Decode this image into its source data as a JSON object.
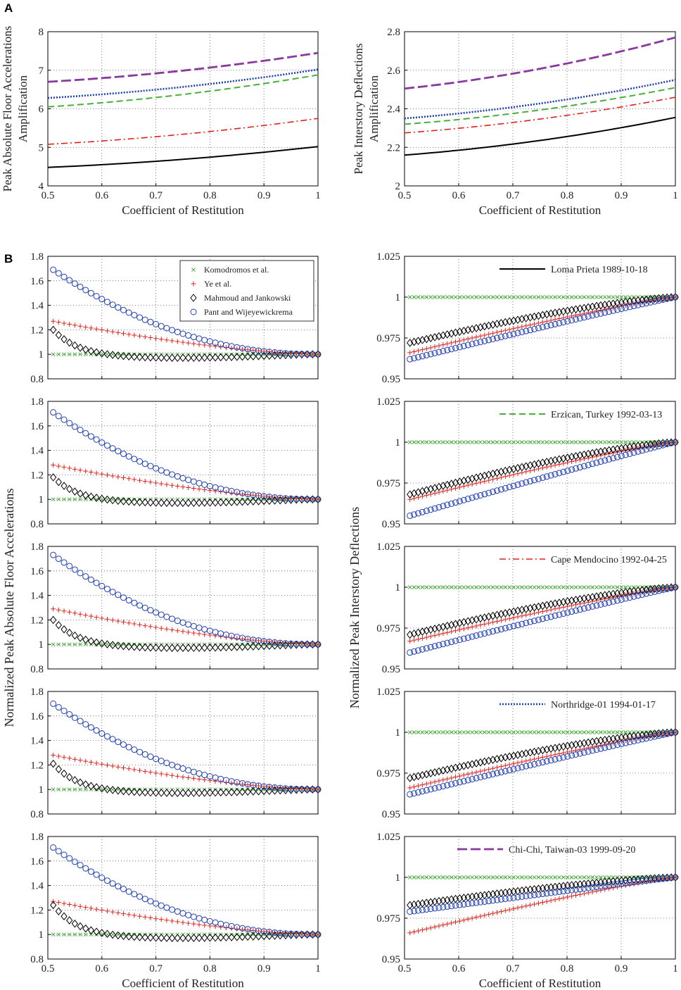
{
  "panel_labels": [
    "A",
    "B"
  ],
  "colors": {
    "loma": "#000000",
    "erzican": "#46b03a",
    "cape": "#e0211b",
    "northridge": "#1f3fb4",
    "chichi": "#8a3a9e",
    "komodromos": "#46b03a",
    "ye": "#e0211b",
    "mahmoud": "#000000",
    "pant": "#1f3fb4"
  },
  "chart_data": [
    {
      "type": "line",
      "id": "A-left",
      "xlabel": "Coefficient of Restitution",
      "ylabel_lines": [
        "Peak Absolute Floor Accelerations",
        "Amplification"
      ],
      "xlim": [
        0.5,
        1
      ],
      "ylim": [
        4,
        8
      ],
      "xticks": [
        "0.5",
        "0.6",
        "0.7",
        "0.8",
        "0.9",
        "1"
      ],
      "yticks": [
        "4",
        "5",
        "6",
        "7",
        "8"
      ],
      "series": [
        {
          "name": "Loma Prieta 1989-10-18",
          "style": "solid",
          "start": 4.48,
          "end": 5.02
        },
        {
          "name": "Erzican, Turkey 1992-03-13",
          "style": "dashed",
          "start": 6.05,
          "end": 6.88
        },
        {
          "name": "Cape Mendocino 1992-04-25",
          "style": "dashdot",
          "start": 5.08,
          "end": 5.75
        },
        {
          "name": "Northridge-01 1994-01-17",
          "style": "dotted",
          "start": 6.28,
          "end": 7.02
        },
        {
          "name": "Chi-Chi, Taiwan-03 1999-09-20",
          "style": "longdash",
          "start": 6.7,
          "end": 7.45
        }
      ]
    },
    {
      "type": "line",
      "id": "A-right",
      "xlabel": "Coefficient of Restitution",
      "ylabel_lines": [
        "Peak Interstory Deflections",
        "Amplification"
      ],
      "xlim": [
        0.5,
        1
      ],
      "ylim": [
        2,
        2.8
      ],
      "xticks": [
        "0.5",
        "0.6",
        "0.7",
        "0.8",
        "0.9",
        "1"
      ],
      "yticks": [
        "2",
        "2.2",
        "2.4",
        "2.6",
        "2.8"
      ],
      "series": [
        {
          "name": "Loma Prieta 1989-10-18",
          "style": "solid",
          "start": 2.16,
          "end": 2.355
        },
        {
          "name": "Erzican, Turkey 1992-03-13",
          "style": "dashed",
          "start": 2.32,
          "end": 2.51
        },
        {
          "name": "Cape Mendocino 1992-04-25",
          "style": "dashdot",
          "start": 2.275,
          "end": 2.46
        },
        {
          "name": "Northridge-01 1994-01-17",
          "style": "dotted",
          "start": 2.35,
          "end": 2.55
        },
        {
          "name": "Chi-Chi, Taiwan-03 1999-09-20",
          "style": "longdash",
          "start": 2.505,
          "end": 2.77
        }
      ]
    },
    {
      "type": "scatter",
      "id": "B-left",
      "rows": 5,
      "xlabel": "Coefficient of Restitution",
      "ylabel": "Normalized Peak Absolute Floor Accelerations",
      "xlim": [
        0.5,
        1
      ],
      "ylim": [
        0.8,
        1.8
      ],
      "xticks": [
        "0.5",
        "0.6",
        "0.7",
        "0.8",
        "0.9",
        "1"
      ],
      "yticks": [
        "0.8",
        "1",
        "1.2",
        "1.4",
        "1.6",
        "1.8"
      ],
      "legend": [
        "Komodromos et al.",
        "Ye et al.",
        "Mahmoud and Jankowski",
        "Pant and Wijeyewickrema"
      ],
      "series_start_values": [
        {
          "komodromos": 1.0,
          "ye": 1.27,
          "mahmoud": 1.2,
          "pant": 1.69
        },
        {
          "komodromos": 1.0,
          "ye": 1.28,
          "mahmoud": 1.18,
          "pant": 1.71
        },
        {
          "komodromos": 1.0,
          "ye": 1.29,
          "mahmoud": 1.2,
          "pant": 1.73
        },
        {
          "komodromos": 1.0,
          "ye": 1.28,
          "mahmoud": 1.21,
          "pant": 1.7
        },
        {
          "komodromos": 1.0,
          "ye": 1.27,
          "mahmoud": 1.24,
          "pant": 1.71
        }
      ],
      "end_value": 1.0
    },
    {
      "type": "scatter",
      "id": "B-right",
      "rows": 5,
      "xlabel": "Coefficient of Restitution",
      "ylabel": "Normalized Peak Interstory Deflections",
      "xlim": [
        0.5,
        1
      ],
      "ylim": [
        0.95,
        1.025
      ],
      "xticks": [
        "0.5",
        "0.6",
        "0.7",
        "0.8",
        "0.9",
        "1"
      ],
      "yticks": [
        "0.95",
        "0.975",
        "1",
        "1.025"
      ],
      "row_legends": [
        "Loma Prieta 1989-10-18",
        "Erzican, Turkey 1992-03-13",
        "Cape Mendocino 1992-04-25",
        "Northridge-01 1994-01-17",
        "Chi-Chi, Taiwan-03 1999-09-20"
      ],
      "series_start_values": [
        {
          "komodromos": 1.0,
          "ye": 0.966,
          "mahmoud": 0.972,
          "pant": 0.962
        },
        {
          "komodromos": 1.0,
          "ye": 0.965,
          "mahmoud": 0.968,
          "pant": 0.955
        },
        {
          "komodromos": 1.0,
          "ye": 0.967,
          "mahmoud": 0.971,
          "pant": 0.96
        },
        {
          "komodromos": 1.0,
          "ye": 0.966,
          "mahmoud": 0.972,
          "pant": 0.962
        },
        {
          "komodromos": 1.0,
          "ye": 0.966,
          "mahmoud": 0.983,
          "pant": 0.979
        }
      ],
      "end_value": 1.0
    }
  ]
}
